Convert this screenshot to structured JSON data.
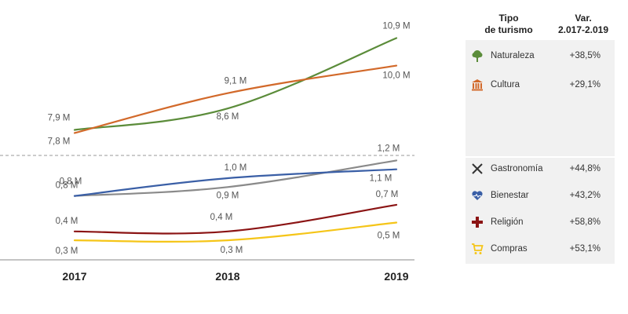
{
  "chart_data": {
    "type": "line",
    "categories": [
      "2017",
      "2018",
      "2019"
    ],
    "series": [
      {
        "name": "Naturaleza",
        "color": "#5b8c3a",
        "values": [
          7.9,
          8.6,
          10.9
        ],
        "labels": [
          "7,9 M",
          "8,6 M",
          "10,9 M"
        ],
        "panel": "top"
      },
      {
        "name": "Cultura",
        "color": "#d2692a",
        "values": [
          7.8,
          9.1,
          10.0
        ],
        "labels": [
          "7,8 M",
          "9,1 M",
          "10,0 M"
        ],
        "panel": "top"
      },
      {
        "name": "Gastronomía",
        "color": "#8a8a8a",
        "values": [
          0.8,
          0.9,
          1.2
        ],
        "labels": [
          "0,8 M",
          "0,9 M",
          "1,2 M"
        ],
        "panel": "bottom"
      },
      {
        "name": "Bienestar",
        "color": "#3a5fa6",
        "values": [
          0.8,
          1.0,
          1.1
        ],
        "labels": [
          "0,8 M",
          "1,0 M",
          "1,1 M"
        ],
        "panel": "bottom"
      },
      {
        "name": "Religión",
        "color": "#8b1414",
        "values": [
          0.4,
          0.4,
          0.7
        ],
        "labels": [
          "0,4 M",
          "0,4 M",
          "0,7 M"
        ],
        "panel": "bottom"
      },
      {
        "name": "Compras",
        "color": "#f5c518",
        "values": [
          0.3,
          0.3,
          0.5
        ],
        "labels": [
          "0,3 M",
          "0,3 M",
          "0,5 M"
        ],
        "panel": "bottom"
      }
    ]
  },
  "legend": {
    "header_type": [
      "Tipo",
      "de turismo"
    ],
    "header_var": [
      "Var.",
      "2.017-2.019"
    ],
    "items": [
      {
        "icon": "tree-icon",
        "name": "Naturaleza",
        "var": "+38,5%",
        "color": "#5b8c3a"
      },
      {
        "icon": "museum-icon",
        "name": "Cultura",
        "var": "+29,1%",
        "color": "#d2692a"
      },
      {
        "icon": "fork-knife-icon",
        "name": "Gastronomía",
        "var": "+44,8%",
        "color": "#333333"
      },
      {
        "icon": "heart-icon",
        "name": "Bienestar",
        "var": "+43,2%",
        "color": "#3a5fa6"
      },
      {
        "icon": "cross-icon",
        "name": "Religión",
        "var": "+58,8%",
        "color": "#8b1414"
      },
      {
        "icon": "cart-icon",
        "name": "Compras",
        "var": "+53,1%",
        "color": "#f5c518"
      }
    ]
  }
}
